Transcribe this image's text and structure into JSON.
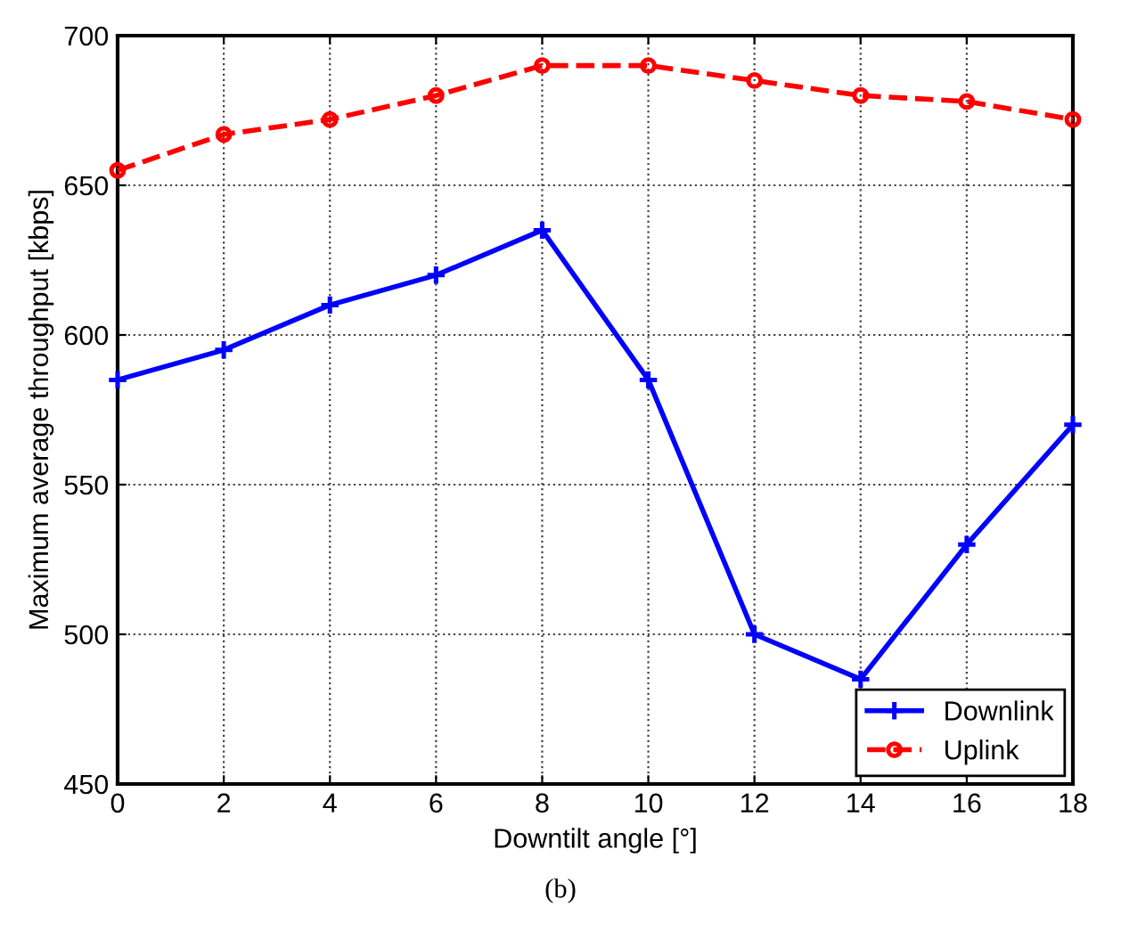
{
  "chart_data": {
    "type": "line",
    "xlabel": "Downtilt angle [°]",
    "ylabel": "Maximum average throughput [kbps]",
    "x": [
      0,
      2,
      4,
      6,
      8,
      10,
      12,
      14,
      16,
      18
    ],
    "series": [
      {
        "name": "Downlink",
        "color": "#0000ff",
        "marker": "cross",
        "line_style": "solid",
        "values": [
          585,
          595,
          610,
          620,
          635,
          585,
          500,
          485,
          530,
          570
        ]
      },
      {
        "name": "Uplink",
        "color": "#ff0000",
        "marker": "circle",
        "line_style": "dashed",
        "values": [
          655,
          667,
          672,
          680,
          690,
          690,
          685,
          680,
          678,
          672
        ]
      }
    ],
    "xlim": [
      0,
      18
    ],
    "xticks": [
      0,
      2,
      4,
      6,
      8,
      10,
      12,
      14,
      16,
      18
    ],
    "ylim": [
      450,
      700
    ],
    "yticks": [
      450,
      500,
      550,
      600,
      650,
      700
    ],
    "grid": true,
    "legend": "bottom right",
    "annotations": [
      "(b)"
    ]
  }
}
